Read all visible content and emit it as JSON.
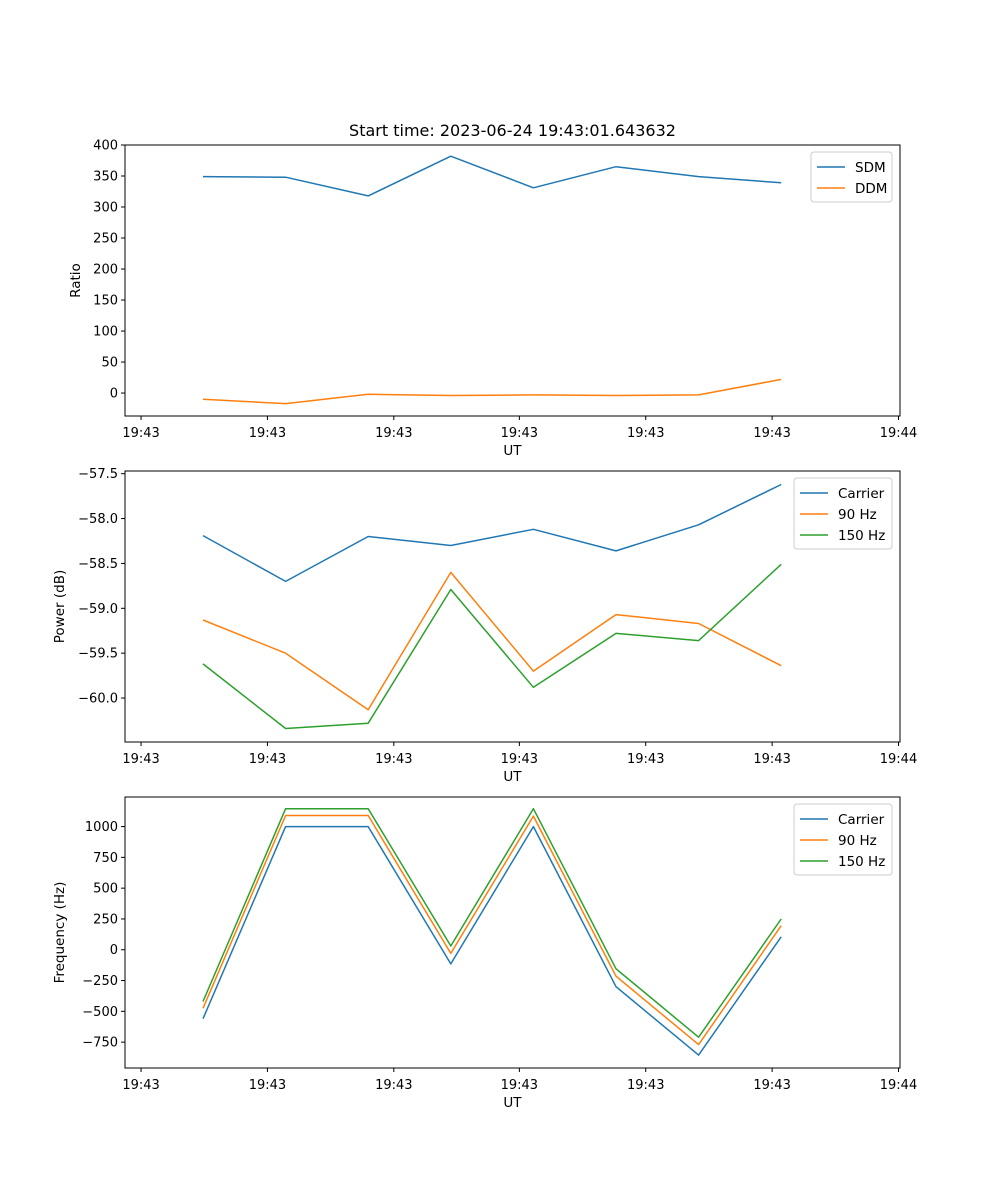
{
  "figure": {
    "title": "Start time: 2023-06-24 19:43:01.643632"
  },
  "chart_data": [
    {
      "type": "line",
      "title": "Start time: 2023-06-24 19:43:01.643632",
      "xlabel": "UT",
      "ylabel": "Ratio",
      "x": [
        "19:43:01.643",
        "19:43:02.143",
        "19:43:02.643",
        "19:43:03.143",
        "19:43:03.643",
        "19:43:04.143",
        "19:43:04.643",
        "19:43:05.143"
      ],
      "xlim_seconds": [
        0.0,
        5.75
      ],
      "xticks": [
        "19:43",
        "19:43",
        "19:43",
        "19:43",
        "19:43",
        "19:43",
        "19:44"
      ],
      "ylim": [
        -37,
        400
      ],
      "yticks": [
        0,
        50,
        100,
        150,
        200,
        250,
        300,
        350,
        400
      ],
      "legend_position": "top-right",
      "grid": false,
      "series": [
        {
          "name": "SDM",
          "color": "#1f77b4",
          "values": [
            349,
            348,
            318,
            382,
            331,
            365,
            349,
            339
          ]
        },
        {
          "name": "DDM",
          "color": "#ff7f0e",
          "values": [
            -10,
            -17,
            -2,
            -4,
            -3,
            -4,
            -3,
            22
          ]
        }
      ]
    },
    {
      "type": "line",
      "xlabel": "UT",
      "ylabel": "Power (dB)",
      "x": [
        "19:43:01.643",
        "19:43:02.143",
        "19:43:02.643",
        "19:43:03.143",
        "19:43:03.643",
        "19:43:04.143",
        "19:43:04.643",
        "19:43:05.143"
      ],
      "xticks": [
        "19:43",
        "19:43",
        "19:43",
        "19:43",
        "19:43",
        "19:43",
        "19:44"
      ],
      "ylim": [
        -60.49,
        -57.47
      ],
      "yticks": [
        -60.0,
        -59.5,
        -59.0,
        -58.5,
        -58.0,
        -57.5
      ],
      "ytick_labels": [
        "−60.0",
        "−59.5",
        "−59.0",
        "−58.5",
        "−58.0",
        "−57.5"
      ],
      "legend_position": "top-right",
      "grid": false,
      "series": [
        {
          "name": "Carrier",
          "color": "#1f77b4",
          "values": [
            -58.19,
            -58.7,
            -58.2,
            -58.3,
            -58.12,
            -58.36,
            -58.07,
            -57.62
          ]
        },
        {
          "name": "90 Hz",
          "color": "#ff7f0e",
          "values": [
            -59.13,
            -59.5,
            -60.13,
            -58.6,
            -59.7,
            -59.07,
            -59.17,
            -59.64
          ]
        },
        {
          "name": "150 Hz",
          "color": "#2ca02c",
          "values": [
            -59.62,
            -60.34,
            -60.28,
            -58.79,
            -59.88,
            -59.28,
            -59.36,
            -58.51
          ]
        }
      ]
    },
    {
      "type": "line",
      "xlabel": "UT",
      "ylabel": "Frequency (Hz)",
      "x": [
        "19:43:01.643",
        "19:43:02.143",
        "19:43:02.643",
        "19:43:03.143",
        "19:43:03.643",
        "19:43:04.143",
        "19:43:04.643",
        "19:43:05.143"
      ],
      "xticks": [
        "19:43",
        "19:43",
        "19:43",
        "19:43",
        "19:43",
        "19:43",
        "19:44"
      ],
      "ylim": [
        -960,
        1240
      ],
      "yticks": [
        -750,
        -500,
        -250,
        0,
        250,
        500,
        750,
        1000
      ],
      "ytick_labels": [
        "−750",
        "−500",
        "−250",
        "0",
        "250",
        "500",
        "750",
        "1000"
      ],
      "legend_position": "top-right",
      "grid": false,
      "series": [
        {
          "name": "Carrier",
          "color": "#1f77b4",
          "values": [
            -560,
            1000,
            1000,
            -115,
            1000,
            -300,
            -855,
            105
          ]
        },
        {
          "name": "90 Hz",
          "color": "#ff7f0e",
          "values": [
            -475,
            1090,
            1090,
            -30,
            1085,
            -215,
            -770,
            195
          ]
        },
        {
          "name": "150 Hz",
          "color": "#2ca02c",
          "values": [
            -420,
            1145,
            1145,
            30,
            1145,
            -155,
            -710,
            250
          ]
        }
      ]
    }
  ]
}
